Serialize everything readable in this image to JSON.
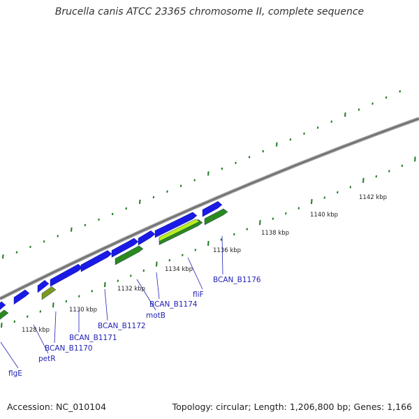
{
  "title": "Brucella canis ATCC 23365 chromosome II, complete sequence",
  "footer": {
    "accession": "Accession: NC_010104",
    "topology": "Topology: circular; Length: 1,206,800 bp; Genes: 1,166"
  },
  "colors": {
    "backbone": "#7a7a7a",
    "cds_forward": "#1a1ae6",
    "cds_reverse": "#2a8a1e",
    "gene_yellow": "#b8f020",
    "gene_olive": "#7a9a20",
    "tick": "#1f7a1f",
    "label": "#1f1fb4"
  },
  "scale_ticks": [
    {
      "label": "1128 kbp"
    },
    {
      "label": "1130 kbp"
    },
    {
      "label": "1132 kbp"
    },
    {
      "label": "1134 kbp"
    },
    {
      "label": "1136 kbp"
    },
    {
      "label": "1138 kbp"
    },
    {
      "label": "1140 kbp"
    },
    {
      "label": "1142 kbp"
    }
  ],
  "gene_labels": [
    {
      "name": "flgE"
    },
    {
      "name": "petR"
    },
    {
      "name": "BCAN_B1170"
    },
    {
      "name": "BCAN_B1171"
    },
    {
      "name": "BCAN_B1172"
    },
    {
      "name": "motB"
    },
    {
      "name": "BCAN_B1174"
    },
    {
      "name": "fliF"
    },
    {
      "name": "BCAN_B1176"
    }
  ]
}
